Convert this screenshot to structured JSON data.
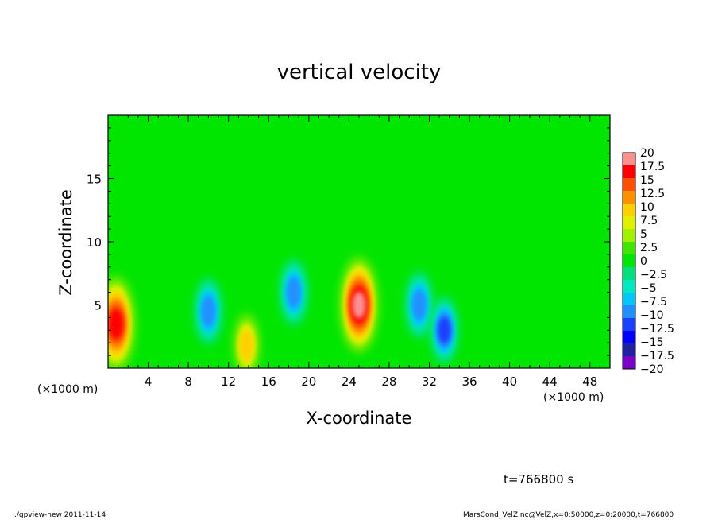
{
  "chart_data": {
    "type": "heatmap",
    "title": "vertical velocity",
    "xlabel": "X-coordinate",
    "ylabel": "Z-coordinate",
    "x_unit_label": "(×1000 m)",
    "xlim": [
      0,
      50
    ],
    "ylim": [
      0,
      20
    ],
    "x_ticks": [
      4,
      8,
      12,
      16,
      20,
      24,
      28,
      32,
      36,
      40,
      44,
      48
    ],
    "y_ticks": [
      5,
      10,
      15
    ],
    "colorbar": {
      "labels": [
        "20",
        "17.5",
        "15",
        "12.5",
        "10",
        "7.5",
        "5",
        "2.5",
        "0",
        "−2.5",
        "−5",
        "−7.5",
        "−10",
        "−12.5",
        "−15",
        "−17.5",
        "−20"
      ],
      "range": [
        -20,
        20
      ]
    },
    "features": [
      {
        "x": 0.8,
        "z": 3.5,
        "value": 16
      },
      {
        "x": 25.0,
        "z": 5.0,
        "value": 18
      },
      {
        "x": 10.0,
        "z": 4.5,
        "value": -10
      },
      {
        "x": 18.5,
        "z": 6.0,
        "value": -9
      },
      {
        "x": 31.0,
        "z": 5.0,
        "value": -10
      },
      {
        "x": 33.5,
        "z": 3.0,
        "value": -12
      },
      {
        "x": 13.8,
        "z": 1.8,
        "value": 8
      }
    ]
  },
  "time_label": "t=766800 s",
  "footer": {
    "left": "./gpview-new   2011-11-14",
    "right": "MarsCond_VelZ.nc@VelZ,x=0:50000,z=0:20000,t=766800"
  },
  "colors": {
    "background": "#00e600",
    "colormap": [
      "#7a00c8",
      "#2020a0",
      "#0000ff",
      "#1a40ff",
      "#2090ff",
      "#00c8ff",
      "#00e8c0",
      "#00e080",
      "#00e600",
      "#40e600",
      "#a0f000",
      "#e0f000",
      "#ffd000",
      "#ff9000",
      "#ff5000",
      "#ff0000",
      "#ff9090"
    ]
  }
}
